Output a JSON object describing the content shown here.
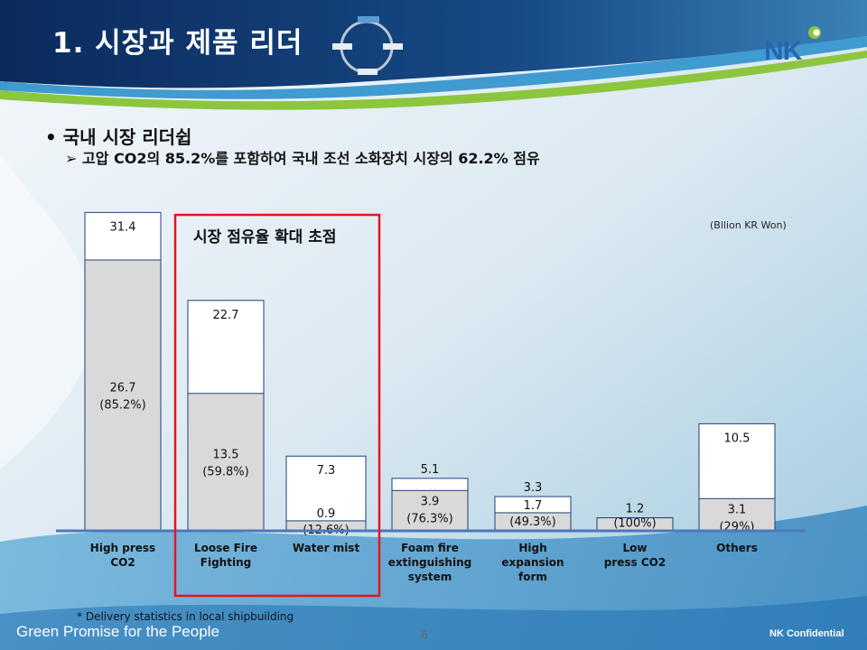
{
  "slide": {
    "title": "1. 시장과 제품 리더",
    "logo": "NK",
    "bullet1": "• 국내 시장 리더쉽",
    "bullet2": "➢ 고압 CO2의 85.2%를 포함하여 국내 조선 소화장치 시장의 62.2% 점유",
    "focus_label": "시장 점유율 확대 초점",
    "footnote": "* Delivery statistics in local shipbuilding",
    "footer_left": "Green Promise for the People",
    "page_number": "6",
    "footer_right": "NK Confidential"
  },
  "colors": {
    "accent_blue": "#2a64b0",
    "highlight_red": "#e8141c",
    "share_gray": "#d9d9d9",
    "axis_blue": "#4a78c0"
  },
  "chart_data": {
    "type": "bar",
    "stacked": true,
    "unit_label": "(Bllion KR Won)",
    "categories": [
      "High press CO2",
      "Loose Fire Fighting",
      "Water mist",
      "Foam fire extinguishing system",
      "High expansion form",
      "Low press CO2",
      "Others"
    ],
    "category_lines": [
      [
        "High press",
        "CO2"
      ],
      [
        "Loose Fire",
        "Fighting"
      ],
      [
        "Water mist"
      ],
      [
        "Foam fire",
        "extinguishing",
        "system"
      ],
      [
        "High",
        "expansion",
        "form"
      ],
      [
        "Low",
        "press CO2"
      ],
      [
        "Others"
      ]
    ],
    "totals": [
      31.4,
      22.7,
      7.3,
      5.1,
      3.3,
      1.2,
      10.5
    ],
    "total_labels": [
      "31.4",
      "22.7",
      "7.3",
      "5.1",
      "3.3",
      "1.2",
      "10.5"
    ],
    "nk_values": [
      26.7,
      13.5,
      0.9,
      3.9,
      1.7,
      1.2,
      3.1
    ],
    "nk_labels": [
      "26.7",
      "13.5",
      "0.9",
      "3.9",
      "1.7",
      "",
      "3.1"
    ],
    "share_labels": [
      "(85.2%)",
      "(59.8%)",
      "(12.6%)",
      "(76.3%)",
      "(49.3%)",
      "(100%)",
      "(29%)"
    ],
    "highlighted_categories": [
      "Loose Fire Fighting",
      "Water mist"
    ]
  }
}
